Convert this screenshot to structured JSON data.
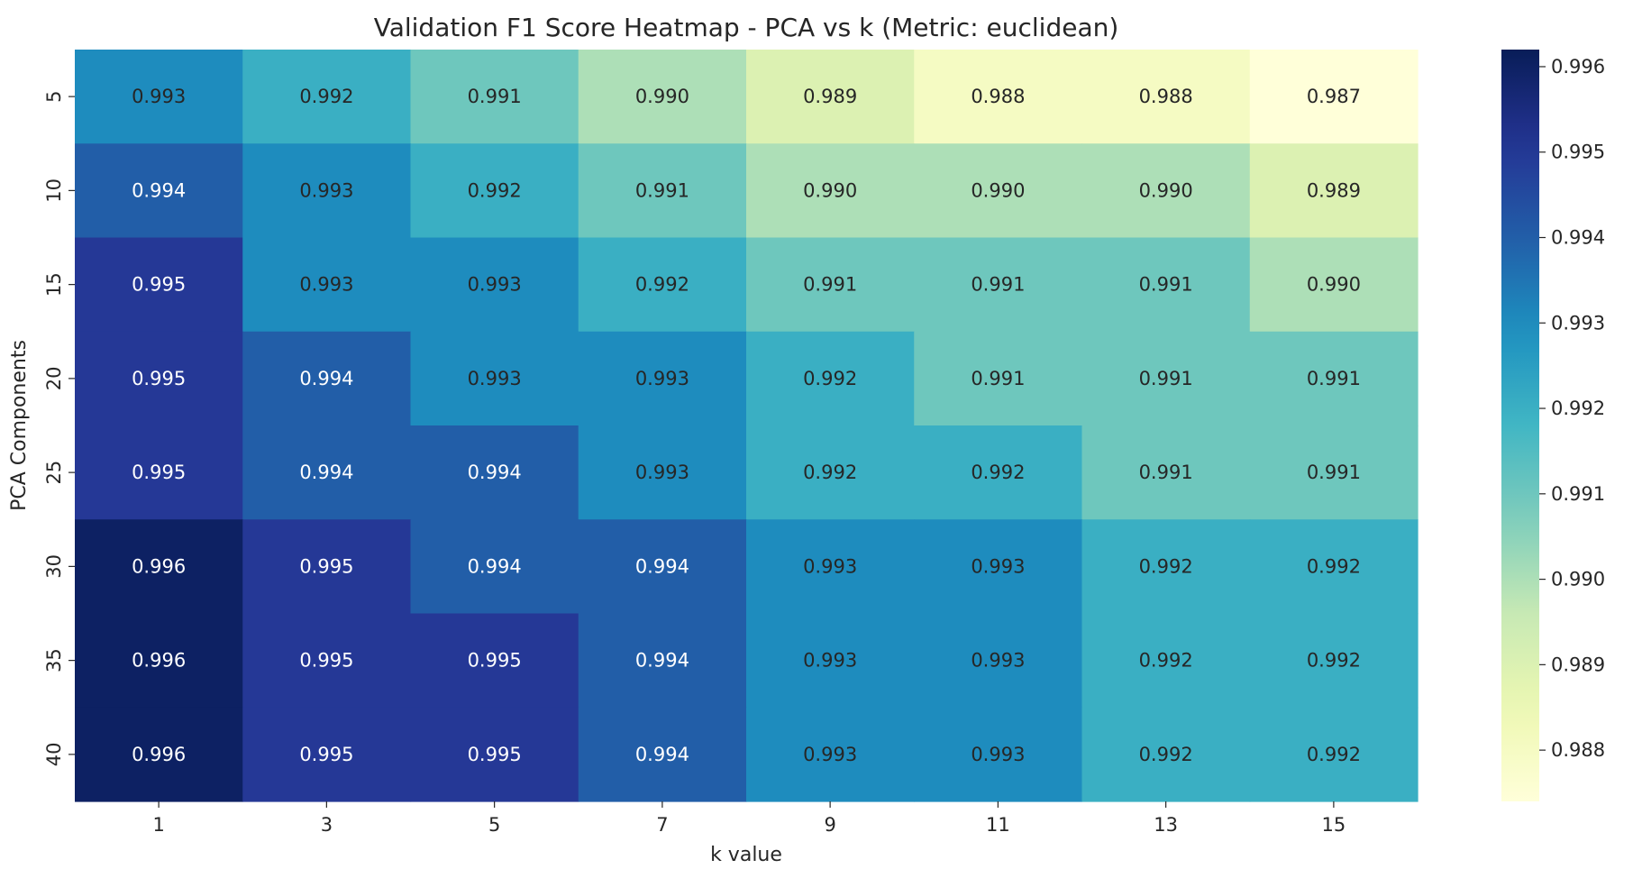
{
  "chart_data": {
    "type": "heatmap",
    "title": "Validation F1 Score Heatmap - PCA vs k (Metric: euclidean)",
    "xlabel": "k value",
    "ylabel": "PCA Components",
    "x_categories": [
      "1",
      "3",
      "5",
      "7",
      "9",
      "11",
      "13",
      "15"
    ],
    "y_categories": [
      "5",
      "10",
      "15",
      "20",
      "25",
      "30",
      "35",
      "40"
    ],
    "values": [
      [
        0.993,
        0.992,
        0.991,
        0.99,
        0.989,
        0.988,
        0.988,
        0.987
      ],
      [
        0.994,
        0.993,
        0.992,
        0.991,
        0.99,
        0.99,
        0.99,
        0.989
      ],
      [
        0.995,
        0.993,
        0.993,
        0.992,
        0.991,
        0.991,
        0.991,
        0.99
      ],
      [
        0.995,
        0.994,
        0.993,
        0.993,
        0.992,
        0.991,
        0.991,
        0.991
      ],
      [
        0.995,
        0.994,
        0.994,
        0.993,
        0.992,
        0.992,
        0.991,
        0.991
      ],
      [
        0.996,
        0.995,
        0.994,
        0.994,
        0.993,
        0.993,
        0.992,
        0.992
      ],
      [
        0.996,
        0.995,
        0.995,
        0.994,
        0.993,
        0.993,
        0.992,
        0.992
      ],
      [
        0.996,
        0.995,
        0.995,
        0.994,
        0.993,
        0.993,
        0.992,
        0.992
      ]
    ],
    "value_format": "0.000",
    "colormap": "YlGnBu",
    "colorbar": {
      "min": 0.9874,
      "max": 0.9962,
      "ticks": [
        0.988,
        0.989,
        0.99,
        0.991,
        0.992,
        0.993,
        0.994,
        0.995,
        0.996
      ],
      "tick_labels": [
        "0.988",
        "0.989",
        "0.990",
        "0.991",
        "0.992",
        "0.993",
        "0.994",
        "0.995",
        "0.996"
      ]
    },
    "cell_labels_visible": true,
    "grid": false
  }
}
